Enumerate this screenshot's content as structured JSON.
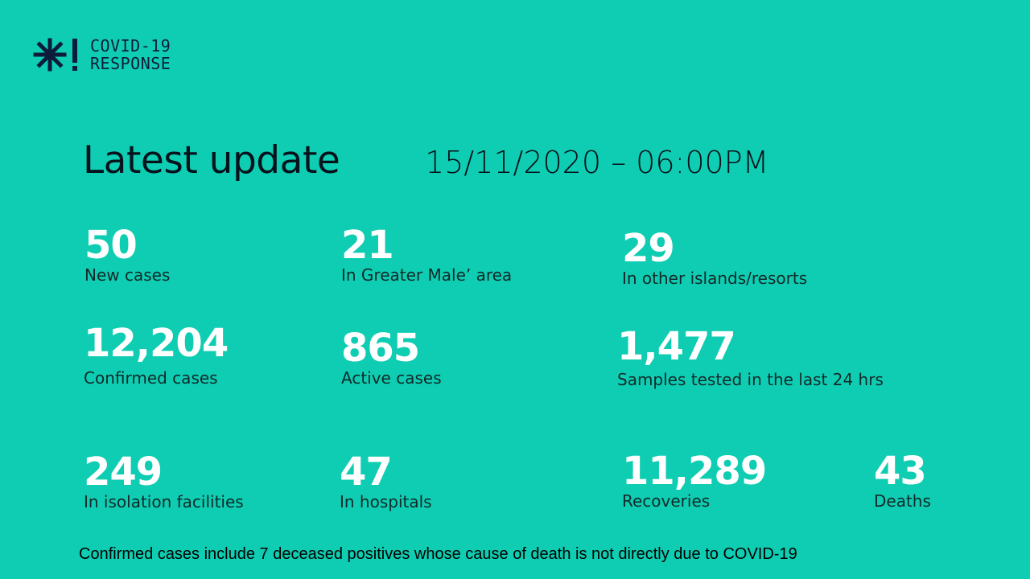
{
  "logo": {
    "line1": "COVID-19",
    "line2": "RESPONSE",
    "icon": "snowflake-exclamation-icon"
  },
  "header": {
    "title": "Latest update",
    "date": "15/11/2020 – 06:00PM"
  },
  "stats": [
    {
      "value": "50",
      "label": "New cases"
    },
    {
      "value": "21",
      "label": "In Greater Male’ area"
    },
    {
      "value": "29",
      "label": "In other islands/resorts"
    },
    {
      "value": "12,204",
      "label": "Confirmed cases"
    },
    {
      "value": "865",
      "label": "Active cases"
    },
    {
      "value": "1,477",
      "label": "Samples tested in the last 24 hrs"
    },
    {
      "value": "249",
      "label": "In isolation facilities"
    },
    {
      "value": "47",
      "label": "In hospitals"
    },
    {
      "value": "11,289",
      "label": "Recoveries"
    },
    {
      "value": "43",
      "label": "Deaths"
    }
  ],
  "footnote": "Confirmed cases include 7 deceased positives whose cause of death is not directly due to COVID-19",
  "colors": {
    "background": "#0fcdb2",
    "text_dark": "#06121c",
    "value_text": "#ffffff"
  }
}
